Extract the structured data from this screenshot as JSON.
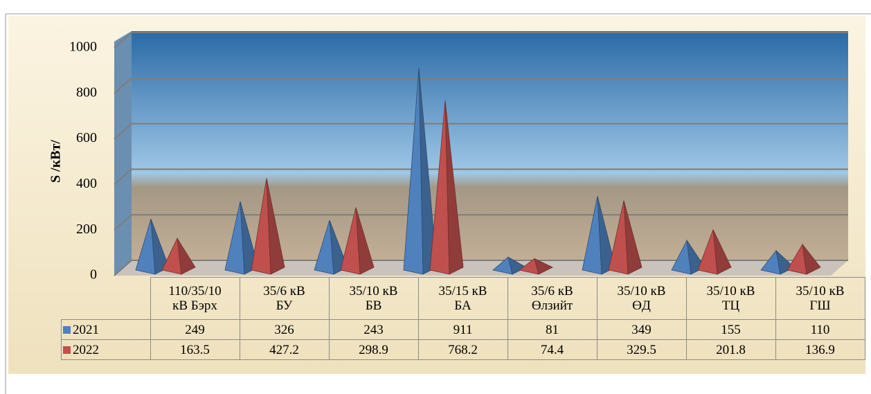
{
  "chart_data": {
    "type": "pyramid",
    "y_label": "S /кВт/",
    "categories": [
      "110/35/10\nкВ Бэрх",
      "35/6 кВ\nБУ",
      "35/10 кВ\nБВ",
      "35/15 кВ\nБА",
      "35/6 кВ\nӨлзийт",
      "35/10 кВ\nӨД",
      "35/10 кВ\nТЦ",
      "35/10 кВ\nГШ"
    ],
    "series": [
      {
        "name": "2021",
        "color": "#4f81bd",
        "values": [
          249,
          326,
          243,
          911,
          81,
          349,
          155,
          110
        ]
      },
      {
        "name": "2022",
        "color": "#c0504d",
        "values": [
          163.5,
          427.2,
          298.9,
          768.2,
          74.4,
          329.5,
          201.8,
          136.9
        ]
      }
    ],
    "ylim": [
      0,
      1000
    ],
    "yticks": [
      0,
      200,
      400,
      600,
      800,
      1000
    ],
    "grid": true
  }
}
